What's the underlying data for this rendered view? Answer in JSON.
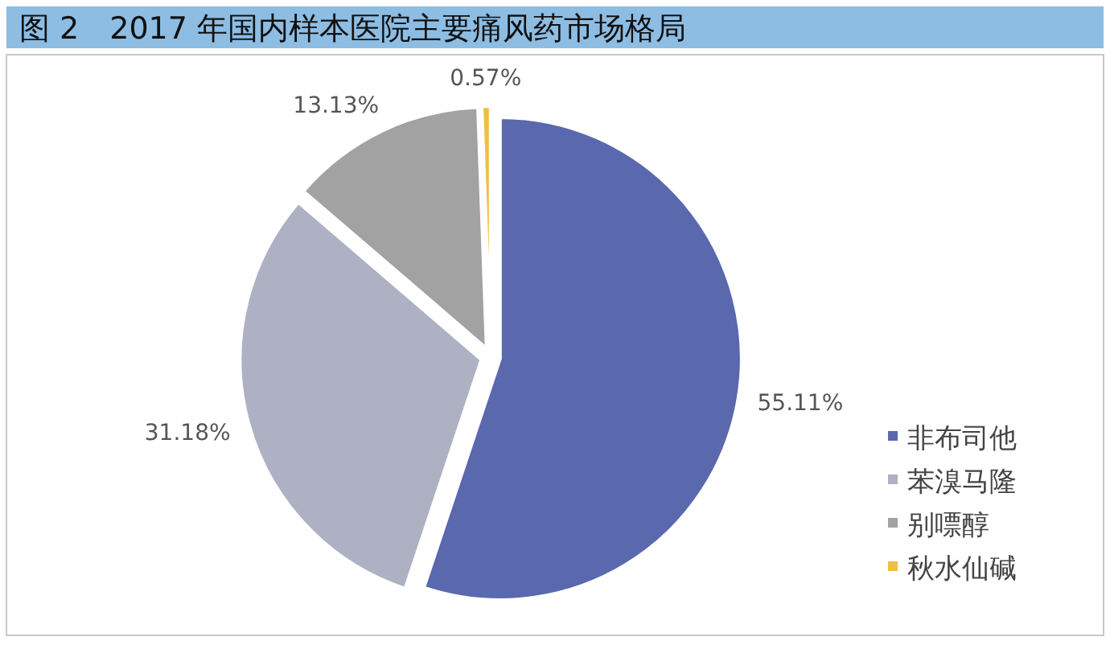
{
  "chart_data": {
    "type": "pie",
    "title": "图 2　2017 年国内样本医院主要痛风药市场格局",
    "categories": [
      "非布司他",
      "苯溴马隆",
      "别嘌醇",
      "秋水仙碱"
    ],
    "values": [
      55.11,
      31.18,
      13.13,
      0.57
    ],
    "colors": [
      "#5a68ae",
      "#adb1c3",
      "#a2a2a2",
      "#efbe45"
    ],
    "value_labels": [
      "55.11%",
      "31.18%",
      "13.13%",
      "0.57%"
    ],
    "legend": "right"
  }
}
